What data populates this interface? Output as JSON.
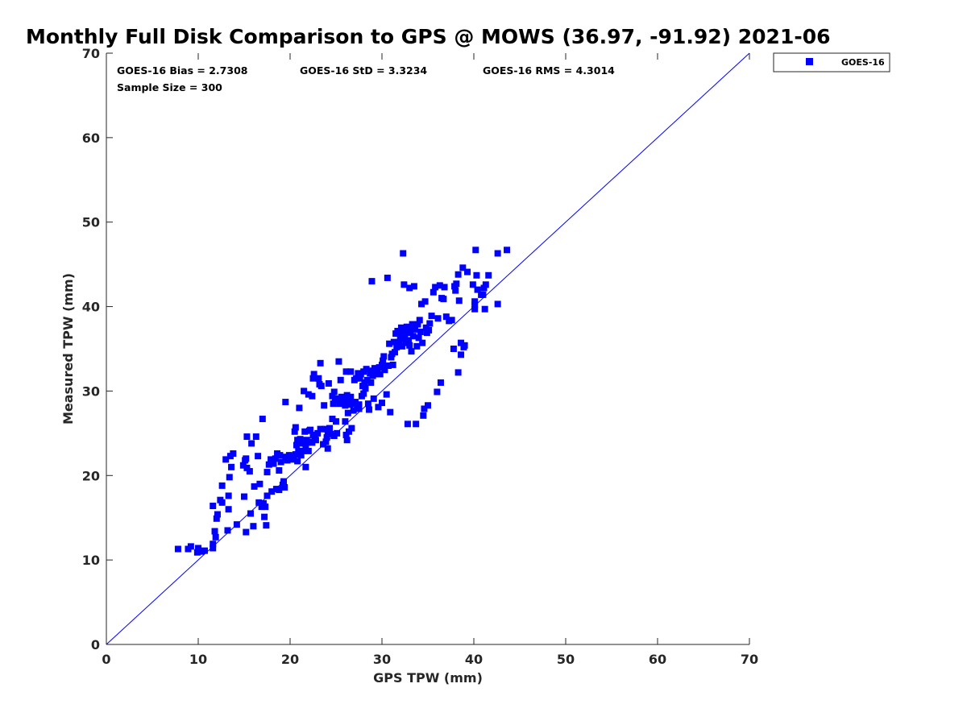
{
  "chart_data": {
    "type": "scatter",
    "title": "Monthly Full Disk Comparison to GPS @ MOWS (36.97, -91.92) 2021-06",
    "xlabel": "GPS TPW (mm)",
    "ylabel": "Measured TPW (mm)",
    "xlim": [
      0,
      70
    ],
    "ylim": [
      0,
      70
    ],
    "xticks": [
      "0",
      "10",
      "20",
      "30",
      "40",
      "50",
      "60",
      "70"
    ],
    "yticks": [
      "0",
      "10",
      "20",
      "30",
      "40",
      "50",
      "60",
      "70"
    ],
    "grid": false,
    "legend_position": "outside top-right",
    "stats": {
      "bias": "GOES-16 Bias = 2.7308",
      "std": "GOES-16 StD = 3.3234",
      "rms": "GOES-16 RMS = 4.3014",
      "sample": "Sample Size = 300"
    },
    "reference_line": {
      "x": [
        0,
        70
      ],
      "y": [
        0,
        70
      ],
      "color": "#0000ff"
    },
    "series": [
      {
        "name": "GOES-16",
        "color": "#0000ff",
        "marker": "square",
        "points": [
          [
            7.8,
            11.3
          ],
          [
            8.9,
            11.3
          ],
          [
            9.2,
            11.6
          ],
          [
            9.9,
            10.9
          ],
          [
            10.0,
            11.4
          ],
          [
            10.3,
            11.0
          ],
          [
            10.7,
            11.1
          ],
          [
            11.6,
            11.4
          ],
          [
            11.6,
            11.9
          ],
          [
            11.6,
            16.4
          ],
          [
            11.8,
            13.4
          ],
          [
            11.9,
            12.7
          ],
          [
            12.0,
            14.9
          ],
          [
            12.1,
            15.4
          ],
          [
            12.4,
            17.1
          ],
          [
            12.6,
            16.8
          ],
          [
            12.6,
            18.8
          ],
          [
            13.0,
            21.9
          ],
          [
            13.2,
            13.5
          ],
          [
            13.3,
            16.0
          ],
          [
            13.3,
            17.6
          ],
          [
            13.4,
            19.8
          ],
          [
            13.5,
            22.3
          ],
          [
            13.6,
            21.0
          ],
          [
            13.8,
            22.6
          ],
          [
            14.2,
            14.2
          ],
          [
            14.9,
            21.2
          ],
          [
            15.0,
            17.5
          ],
          [
            15.1,
            21.8
          ],
          [
            15.2,
            13.3
          ],
          [
            15.2,
            22.0
          ],
          [
            15.3,
            20.9
          ],
          [
            15.3,
            24.6
          ],
          [
            15.6,
            20.5
          ],
          [
            15.7,
            15.5
          ],
          [
            15.8,
            23.8
          ],
          [
            16.0,
            14.0
          ],
          [
            16.1,
            18.7
          ],
          [
            16.3,
            24.6
          ],
          [
            16.5,
            22.3
          ],
          [
            16.6,
            16.8
          ],
          [
            16.7,
            19.0
          ],
          [
            16.9,
            16.3
          ],
          [
            17.0,
            26.7
          ],
          [
            17.1,
            16.7
          ],
          [
            17.2,
            15.1
          ],
          [
            17.3,
            16.3
          ],
          [
            17.4,
            14.1
          ],
          [
            17.5,
            17.6
          ],
          [
            17.5,
            20.4
          ],
          [
            17.7,
            21.3
          ],
          [
            17.9,
            21.9
          ],
          [
            18.0,
            18.1
          ],
          [
            18.2,
            21.4
          ],
          [
            18.4,
            22.0
          ],
          [
            18.5,
            18.4
          ],
          [
            18.6,
            22.6
          ],
          [
            18.8,
            18.3
          ],
          [
            18.8,
            20.6
          ],
          [
            18.9,
            22.4
          ],
          [
            19.0,
            21.6
          ],
          [
            19.2,
            18.9
          ],
          [
            19.3,
            19.3
          ],
          [
            19.4,
            18.6
          ],
          [
            19.5,
            22.2
          ],
          [
            19.5,
            28.7
          ],
          [
            19.7,
            21.8
          ],
          [
            19.9,
            22.4
          ],
          [
            20.0,
            22.0
          ],
          [
            20.2,
            22.2
          ],
          [
            20.4,
            21.9
          ],
          [
            20.5,
            25.2
          ],
          [
            20.6,
            22.5
          ],
          [
            20.6,
            25.7
          ],
          [
            20.7,
            23.6
          ],
          [
            20.8,
            21.7
          ],
          [
            20.8,
            24.2
          ],
          [
            20.9,
            22.9
          ],
          [
            21.0,
            28.0
          ],
          [
            21.1,
            24.3
          ],
          [
            21.2,
            22.4
          ],
          [
            21.3,
            23.8
          ],
          [
            21.4,
            22.9
          ],
          [
            21.5,
            30.0
          ],
          [
            21.6,
            25.2
          ],
          [
            21.7,
            21.0
          ],
          [
            21.7,
            23.6
          ],
          [
            21.8,
            24.2
          ],
          [
            21.9,
            23.9
          ],
          [
            22.0,
            29.6
          ],
          [
            22.0,
            22.9
          ],
          [
            22.1,
            25.3
          ],
          [
            22.1,
            24.0
          ],
          [
            22.2,
            25.4
          ],
          [
            22.4,
            23.9
          ],
          [
            22.4,
            29.4
          ],
          [
            22.5,
            24.8
          ],
          [
            22.5,
            31.5
          ],
          [
            22.6,
            32.0
          ],
          [
            22.7,
            24.3
          ],
          [
            22.8,
            24.2
          ],
          [
            23.0,
            25.0
          ],
          [
            23.1,
            31.5
          ],
          [
            23.2,
            30.8
          ],
          [
            23.3,
            33.3
          ],
          [
            23.3,
            25.5
          ],
          [
            23.4,
            30.6
          ],
          [
            23.6,
            23.7
          ],
          [
            23.7,
            28.3
          ],
          [
            23.8,
            25.5
          ],
          [
            23.9,
            24.0
          ],
          [
            24.0,
            24.5
          ],
          [
            24.1,
            25.0
          ],
          [
            24.1,
            23.2
          ],
          [
            24.2,
            30.9
          ],
          [
            24.3,
            25.6
          ],
          [
            24.4,
            24.9
          ],
          [
            24.6,
            29.4
          ],
          [
            24.6,
            26.7
          ],
          [
            24.7,
            28.5
          ],
          [
            24.8,
            29.9
          ],
          [
            24.8,
            24.7
          ],
          [
            24.9,
            28.9
          ],
          [
            25.0,
            26.4
          ],
          [
            25.1,
            25.0
          ],
          [
            25.2,
            29.1
          ],
          [
            25.3,
            33.5
          ],
          [
            25.4,
            28.5
          ],
          [
            25.5,
            31.3
          ],
          [
            25.6,
            29.3
          ],
          [
            25.7,
            28.8
          ],
          [
            25.8,
            29.2
          ],
          [
            25.9,
            28.5
          ],
          [
            26.0,
            28.3
          ],
          [
            26.0,
            26.4
          ],
          [
            26.1,
            24.8
          ],
          [
            26.1,
            32.3
          ],
          [
            26.2,
            29.5
          ],
          [
            26.2,
            24.2
          ],
          [
            26.3,
            27.4
          ],
          [
            26.4,
            28.8
          ],
          [
            26.4,
            25.2
          ],
          [
            26.5,
            28.4
          ],
          [
            26.6,
            29.3
          ],
          [
            26.6,
            32.3
          ],
          [
            26.7,
            25.6
          ],
          [
            26.8,
            28.5
          ],
          [
            26.9,
            27.7
          ],
          [
            27.0,
            31.3
          ],
          [
            27.1,
            28.7
          ],
          [
            27.2,
            31.5
          ],
          [
            27.3,
            28.0
          ],
          [
            27.4,
            32.1
          ],
          [
            27.5,
            28.4
          ],
          [
            27.6,
            31.5
          ],
          [
            27.7,
            32.0
          ],
          [
            27.8,
            29.4
          ],
          [
            27.9,
            30.6
          ],
          [
            28.0,
            32.3
          ],
          [
            28.0,
            29.7
          ],
          [
            28.1,
            31.0
          ],
          [
            28.2,
            30.3
          ],
          [
            28.3,
            32.6
          ],
          [
            28.4,
            31.3
          ],
          [
            28.5,
            28.5
          ],
          [
            28.6,
            27.8
          ],
          [
            28.7,
            32.1
          ],
          [
            28.8,
            31.0
          ],
          [
            28.9,
            43.0
          ],
          [
            28.9,
            32.4
          ],
          [
            29.0,
            31.8
          ],
          [
            29.1,
            29.1
          ],
          [
            29.2,
            32.7
          ],
          [
            29.3,
            32.2
          ],
          [
            29.4,
            32.0
          ],
          [
            29.5,
            32.5
          ],
          [
            29.6,
            28.1
          ],
          [
            29.7,
            32.8
          ],
          [
            29.8,
            32.0
          ],
          [
            30.0,
            28.6
          ],
          [
            30.0,
            33.1
          ],
          [
            30.1,
            33.6
          ],
          [
            30.2,
            34.1
          ],
          [
            30.3,
            32.5
          ],
          [
            30.5,
            29.6
          ],
          [
            30.6,
            43.4
          ],
          [
            30.7,
            33.0
          ],
          [
            30.8,
            35.6
          ],
          [
            30.9,
            27.5
          ],
          [
            31.0,
            34.0
          ],
          [
            31.1,
            34.4
          ],
          [
            31.2,
            33.1
          ],
          [
            31.3,
            35.8
          ],
          [
            31.4,
            34.6
          ],
          [
            31.5,
            36.8
          ],
          [
            31.6,
            35.2
          ],
          [
            31.7,
            37.1
          ],
          [
            31.8,
            35.8
          ],
          [
            31.9,
            35.5
          ],
          [
            32.0,
            36.2
          ],
          [
            32.0,
            36.6
          ],
          [
            32.1,
            37.5
          ],
          [
            32.2,
            35.3
          ],
          [
            32.3,
            46.3
          ],
          [
            32.3,
            37.0
          ],
          [
            32.4,
            42.6
          ],
          [
            32.5,
            36.3
          ],
          [
            32.6,
            35.7
          ],
          [
            32.7,
            37.6
          ],
          [
            32.8,
            36.9
          ],
          [
            32.8,
            26.1
          ],
          [
            32.9,
            36.0
          ],
          [
            33.0,
            42.2
          ],
          [
            33.0,
            35.4
          ],
          [
            33.1,
            37.2
          ],
          [
            33.2,
            34.7
          ],
          [
            33.3,
            37.9
          ],
          [
            33.4,
            36.5
          ],
          [
            33.5,
            42.4
          ],
          [
            33.6,
            37.3
          ],
          [
            33.7,
            26.1
          ],
          [
            33.8,
            35.3
          ],
          [
            33.9,
            37.9
          ],
          [
            34.0,
            36.3
          ],
          [
            34.1,
            38.4
          ],
          [
            34.2,
            37.0
          ],
          [
            34.3,
            40.3
          ],
          [
            34.4,
            35.7
          ],
          [
            34.5,
            27.1
          ],
          [
            34.6,
            27.9
          ],
          [
            34.7,
            40.6
          ],
          [
            34.8,
            37.5
          ],
          [
            34.9,
            36.9
          ],
          [
            35.0,
            28.3
          ],
          [
            35.1,
            37.2
          ],
          [
            35.2,
            38.0
          ],
          [
            35.4,
            38.9
          ],
          [
            35.6,
            41.7
          ],
          [
            35.8,
            42.3
          ],
          [
            36.0,
            29.9
          ],
          [
            36.1,
            38.6
          ],
          [
            36.3,
            42.5
          ],
          [
            36.4,
            31.0
          ],
          [
            36.5,
            41.0
          ],
          [
            36.7,
            40.9
          ],
          [
            36.8,
            42.3
          ],
          [
            37.0,
            38.8
          ],
          [
            37.3,
            38.3
          ],
          [
            37.6,
            38.4
          ],
          [
            37.8,
            35.0
          ],
          [
            37.9,
            42.4
          ],
          [
            38.0,
            41.9
          ],
          [
            38.1,
            42.7
          ],
          [
            38.3,
            43.8
          ],
          [
            38.3,
            32.2
          ],
          [
            38.4,
            40.7
          ],
          [
            38.6,
            35.7
          ],
          [
            38.6,
            34.3
          ],
          [
            38.8,
            44.6
          ],
          [
            38.9,
            35.2
          ],
          [
            39.0,
            35.4
          ],
          [
            39.3,
            44.1
          ],
          [
            39.9,
            42.6
          ],
          [
            40.1,
            40.6
          ],
          [
            40.1,
            40.2
          ],
          [
            40.1,
            39.7
          ],
          [
            40.2,
            46.7
          ],
          [
            40.3,
            43.7
          ],
          [
            40.4,
            42.0
          ],
          [
            40.8,
            41.4
          ],
          [
            41.0,
            41.4
          ],
          [
            41.1,
            42.2
          ],
          [
            41.2,
            39.7
          ],
          [
            41.3,
            42.6
          ],
          [
            41.6,
            43.7
          ],
          [
            42.6,
            46.3
          ],
          [
            42.6,
            40.3
          ],
          [
            43.6,
            46.7
          ],
          [
            26.0,
            29.1
          ],
          [
            27.5,
            27.9
          ]
        ]
      }
    ]
  }
}
